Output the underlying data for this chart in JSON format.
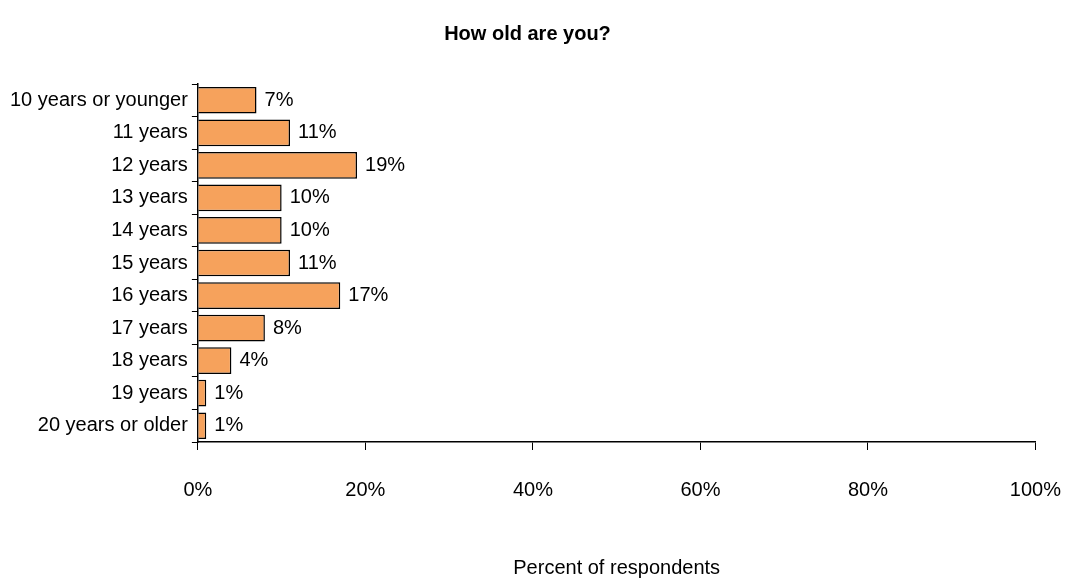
{
  "chart_data": {
    "type": "bar",
    "orientation": "horizontal",
    "title": "How old are you?",
    "xlabel": "Percent of respondents",
    "categories": [
      "10 years or younger",
      "11 years",
      "12 years",
      "13 years",
      "14 years",
      "15 years",
      "16 years",
      "17 years",
      "18 years",
      "19 years",
      "20 years or older"
    ],
    "values": [
      7,
      11,
      19,
      10,
      10,
      11,
      17,
      8,
      4,
      1,
      1
    ],
    "value_labels": [
      "7%",
      "11%",
      "19%",
      "10%",
      "10%",
      "11%",
      "17%",
      "8%",
      "4%",
      "1%",
      "1%"
    ],
    "color": "#f6a25c",
    "xlim": [
      0,
      100
    ],
    "xticks": [
      {
        "value": 0,
        "label": "0%"
      },
      {
        "value": 20,
        "label": "20%"
      },
      {
        "value": 40,
        "label": "40%"
      },
      {
        "value": 60,
        "label": "60%"
      },
      {
        "value": 80,
        "label": "80%"
      },
      {
        "value": 100,
        "label": "100%"
      }
    ],
    "grid": false,
    "legend": false
  }
}
